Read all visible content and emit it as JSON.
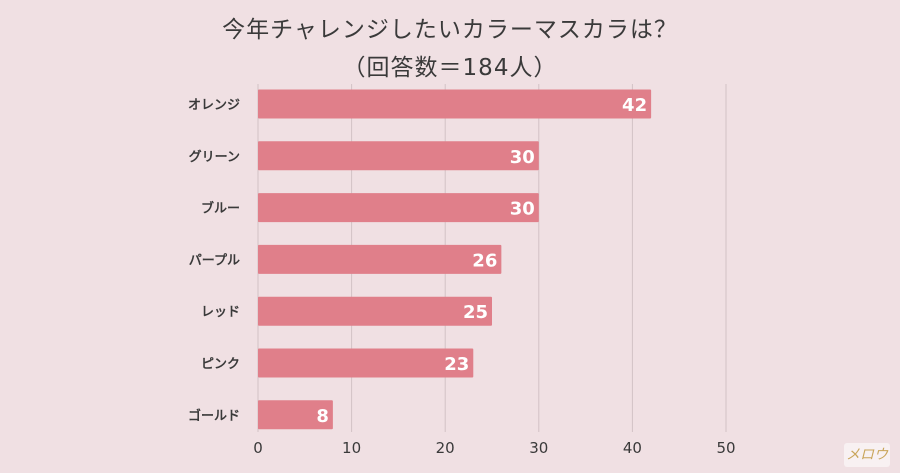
{
  "chart_data": {
    "type": "bar",
    "orientation": "horizontal",
    "title": [
      "今年チャレンジしたいカラーマスカラは？",
      "（回答数＝184人）"
    ],
    "categories": [
      "オレンジ",
      "グリーン",
      "ブルー",
      "パープル",
      "レッド",
      "ピンク",
      "ゴールド"
    ],
    "values": [
      42,
      30,
      30,
      26,
      25,
      23,
      8
    ],
    "xticks": [
      0,
      10,
      20,
      30,
      40,
      50
    ],
    "xlim": [
      0,
      50
    ],
    "grid": true,
    "bar_color": "#e07f8a",
    "value_label_color": "#ffffff"
  },
  "watermark": "メロウ",
  "colors": {
    "background": "#f0e0e3",
    "grid": "#d2c2c5",
    "text": "#3a3a3a"
  }
}
